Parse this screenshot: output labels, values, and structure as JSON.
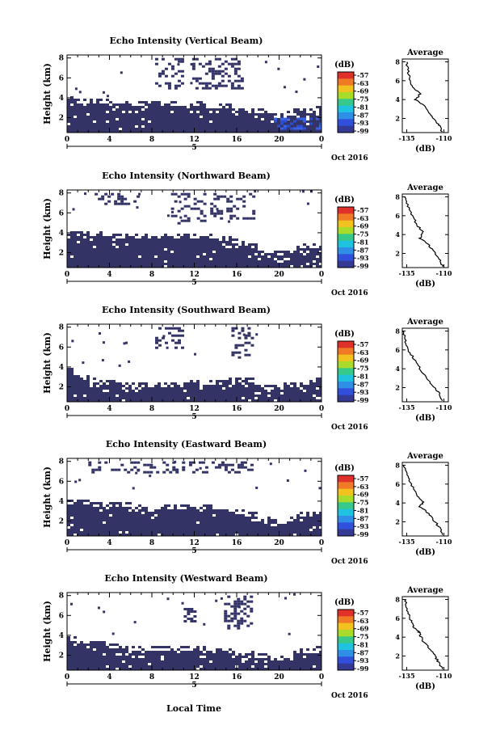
{
  "figure": {
    "xaxis_label": "Local Time",
    "colorbar_unit": "(dB)",
    "avg_title": "Average",
    "avg_xlabel": "(dB)",
    "ylabel": "Height (km)",
    "date_label": "Oct 2016",
    "day_label": "5",
    "colors": {
      "background": "#ffffff",
      "echo_fill": "#333366",
      "echo_strong": "#2d4fd6",
      "line": "#000000"
    }
  },
  "colorbar": {
    "ticks": [
      "-57",
      "-63",
      "-69",
      "-75",
      "-81",
      "-87",
      "-93",
      "-99"
    ],
    "colors": [
      "#e0302a",
      "#f07a25",
      "#f2c21e",
      "#a8db2a",
      "#37c98a",
      "#1fc3df",
      "#2f8ee6",
      "#3050dc",
      "#343a94"
    ]
  },
  "chart_data": [
    {
      "type": "heatmap",
      "title": "Echo Intensity (Vertical Beam)",
      "ylabel": "Height (km)",
      "yticks": [
        2,
        4,
        6,
        8
      ],
      "ylim": [
        0.5,
        8.3
      ],
      "xticks": [
        "0",
        "4",
        "8",
        "12",
        "16",
        "20",
        "0"
      ],
      "xlim": [
        0,
        24
      ],
      "echo_profile": [
        {
          "x": 0,
          "top": 3.6
        },
        {
          "x": 3,
          "top": 3.4
        },
        {
          "x": 6,
          "top": 3.1
        },
        {
          "x": 9,
          "top": 3.1
        },
        {
          "x": 12,
          "top": 3.2
        },
        {
          "x": 15,
          "top": 2.9
        },
        {
          "x": 18,
          "top": 2.5
        },
        {
          "x": 20,
          "top": 1.8
        },
        {
          "x": 22,
          "top": 2.6
        },
        {
          "x": 24,
          "top": 2.7
        }
      ],
      "sparse_regions": [
        {
          "x": [
            8.3,
            10.8
          ],
          "y": [
            5.0,
            8.0
          ]
        },
        {
          "x": [
            11.8,
            16.6
          ],
          "y": [
            5.0,
            8.0
          ]
        }
      ],
      "strong_region": {
        "x": [
          19.5,
          24
        ],
        "y": [
          0.8,
          2.0
        ]
      },
      "average": {
        "title": "Average",
        "xlabel": "(dB)",
        "xticks": [
          -135,
          -110
        ],
        "xlim": [
          -138,
          -107
        ],
        "yticks": [
          2,
          4,
          6,
          8
        ],
        "ylim": [
          0.5,
          8.3
        ],
        "profile": [
          {
            "h": 8.0,
            "db": -135
          },
          {
            "h": 7.0,
            "db": -134
          },
          {
            "h": 6.0,
            "db": -133
          },
          {
            "h": 5.2,
            "db": -130
          },
          {
            "h": 4.6,
            "db": -126
          },
          {
            "h": 4.0,
            "db": -129
          },
          {
            "h": 3.4,
            "db": -124
          },
          {
            "h": 2.6,
            "db": -120
          },
          {
            "h": 1.8,
            "db": -116
          },
          {
            "h": 1.2,
            "db": -113
          },
          {
            "h": 0.6,
            "db": -111
          }
        ]
      }
    },
    {
      "type": "heatmap",
      "title": "Echo Intensity (Northward Beam)",
      "ylabel": "Height (km)",
      "yticks": [
        2,
        4,
        6,
        8
      ],
      "ylim": [
        0.5,
        8.3
      ],
      "xticks": [
        "0",
        "4",
        "8",
        "12",
        "16",
        "20",
        "0"
      ],
      "xlim": [
        0,
        24
      ],
      "echo_profile": [
        {
          "x": 0,
          "top": 3.8
        },
        {
          "x": 3,
          "top": 3.6
        },
        {
          "x": 6,
          "top": 3.5
        },
        {
          "x": 9,
          "top": 3.4
        },
        {
          "x": 12,
          "top": 3.5
        },
        {
          "x": 15,
          "top": 3.2
        },
        {
          "x": 18,
          "top": 2.3
        },
        {
          "x": 20,
          "top": 1.6
        },
        {
          "x": 22,
          "top": 2.3
        },
        {
          "x": 24,
          "top": 2.7
        }
      ],
      "sparse_regions": [
        {
          "x": [
            2.6,
            7.0
          ],
          "y": [
            7.0,
            8.0
          ]
        },
        {
          "x": [
            9.8,
            13.0
          ],
          "y": [
            5.0,
            8.0
          ]
        },
        {
          "x": [
            13.5,
            17.5
          ],
          "y": [
            5.4,
            8.0
          ]
        }
      ],
      "strong_region": null,
      "average": {
        "title": "Average",
        "xlabel": "(dB)",
        "xticks": [
          -135,
          -110
        ],
        "xlim": [
          -138,
          -107
        ],
        "yticks": [
          2,
          4,
          6,
          8
        ],
        "ylim": [
          0.5,
          8.3
        ],
        "profile": [
          {
            "h": 8.0,
            "db": -136
          },
          {
            "h": 7.0,
            "db": -134
          },
          {
            "h": 6.0,
            "db": -131
          },
          {
            "h": 5.0,
            "db": -128
          },
          {
            "h": 4.2,
            "db": -124
          },
          {
            "h": 3.6,
            "db": -126
          },
          {
            "h": 3.0,
            "db": -121
          },
          {
            "h": 2.2,
            "db": -117
          },
          {
            "h": 1.4,
            "db": -113
          },
          {
            "h": 0.6,
            "db": -111
          }
        ]
      }
    },
    {
      "type": "heatmap",
      "title": "Echo Intensity (Southward Beam)",
      "ylabel": "Height (km)",
      "yticks": [
        2,
        4,
        6,
        8
      ],
      "ylim": [
        0.5,
        8.3
      ],
      "xticks": [
        "0",
        "4",
        "8",
        "12",
        "16",
        "20",
        "0"
      ],
      "xlim": [
        0,
        24
      ],
      "echo_profile": [
        {
          "x": 0,
          "top": 3.6
        },
        {
          "x": 2,
          "top": 2.6
        },
        {
          "x": 4,
          "top": 2.1
        },
        {
          "x": 8,
          "top": 2.0
        },
        {
          "x": 12,
          "top": 2.1
        },
        {
          "x": 15,
          "top": 2.3
        },
        {
          "x": 17,
          "top": 2.6
        },
        {
          "x": 19,
          "top": 1.6
        },
        {
          "x": 22,
          "top": 2.1
        },
        {
          "x": 24,
          "top": 2.4
        }
      ],
      "sparse_regions": [
        {
          "x": [
            8.0,
            11.0
          ],
          "y": [
            6.0,
            8.0
          ]
        },
        {
          "x": [
            15.5,
            17.5
          ],
          "y": [
            5.0,
            8.0
          ]
        }
      ],
      "strong_region": null,
      "average": {
        "title": "Average",
        "xlabel": "(dB)",
        "xticks": [
          -135,
          -110
        ],
        "xlim": [
          -138,
          -107
        ],
        "yticks": [
          2,
          4,
          6,
          8
        ],
        "ylim": [
          0.5,
          8.3
        ],
        "profile": [
          {
            "h": 8.0,
            "db": -137
          },
          {
            "h": 7.0,
            "db": -136
          },
          {
            "h": 6.0,
            "db": -134
          },
          {
            "h": 5.0,
            "db": -130
          },
          {
            "h": 4.0,
            "db": -126
          },
          {
            "h": 3.0,
            "db": -122
          },
          {
            "h": 2.2,
            "db": -117
          },
          {
            "h": 1.4,
            "db": -113
          },
          {
            "h": 0.6,
            "db": -111
          }
        ]
      }
    },
    {
      "type": "heatmap",
      "title": "Echo Intensity (Eastward Beam)",
      "ylabel": "Height (km)",
      "yticks": [
        2,
        4,
        6,
        8
      ],
      "ylim": [
        0.5,
        8.3
      ],
      "xticks": [
        "0",
        "4",
        "8",
        "12",
        "16",
        "20",
        "0"
      ],
      "xlim": [
        0,
        24
      ],
      "echo_profile": [
        {
          "x": 0,
          "top": 3.8
        },
        {
          "x": 3,
          "top": 3.5
        },
        {
          "x": 6,
          "top": 3.3
        },
        {
          "x": 9,
          "top": 3.2
        },
        {
          "x": 12,
          "top": 3.3
        },
        {
          "x": 15,
          "top": 3.0
        },
        {
          "x": 18,
          "top": 2.3
        },
        {
          "x": 20,
          "top": 1.6
        },
        {
          "x": 22,
          "top": 2.4
        },
        {
          "x": 24,
          "top": 2.7
        }
      ],
      "sparse_regions": [
        {
          "x": [
            2.0,
            11.0
          ],
          "y": [
            6.8,
            8.0
          ]
        },
        {
          "x": [
            11.5,
            17.5
          ],
          "y": [
            6.8,
            8.0
          ]
        }
      ],
      "strong_region": null,
      "average": {
        "title": "Average",
        "xlabel": "(dB)",
        "xticks": [
          -135,
          -110
        ],
        "xlim": [
          -138,
          -107
        ],
        "yticks": [
          2,
          4,
          6,
          8
        ],
        "ylim": [
          0.5,
          8.3
        ],
        "profile": [
          {
            "h": 8.0,
            "db": -137
          },
          {
            "h": 7.0,
            "db": -135
          },
          {
            "h": 6.0,
            "db": -132
          },
          {
            "h": 5.0,
            "db": -129
          },
          {
            "h": 4.2,
            "db": -124
          },
          {
            "h": 3.6,
            "db": -126
          },
          {
            "h": 3.0,
            "db": -121
          },
          {
            "h": 2.2,
            "db": -117
          },
          {
            "h": 1.4,
            "db": -113
          },
          {
            "h": 0.6,
            "db": -111
          }
        ]
      }
    },
    {
      "type": "heatmap",
      "title": "Echo Intensity (Westward Beam)",
      "ylabel": "Height (km)",
      "yticks": [
        2,
        4,
        6,
        8
      ],
      "ylim": [
        0.5,
        8.3
      ],
      "xticks": [
        "0",
        "4",
        "8",
        "12",
        "16",
        "20",
        "0"
      ],
      "xlim": [
        0,
        24
      ],
      "echo_profile": [
        {
          "x": 0,
          "top": 3.6
        },
        {
          "x": 3,
          "top": 3.0
        },
        {
          "x": 6,
          "top": 2.4
        },
        {
          "x": 9,
          "top": 2.5
        },
        {
          "x": 12,
          "top": 2.4
        },
        {
          "x": 15,
          "top": 2.2
        },
        {
          "x": 18,
          "top": 1.8
        },
        {
          "x": 20,
          "top": 1.4
        },
        {
          "x": 22,
          "top": 2.3
        },
        {
          "x": 24,
          "top": 2.4
        }
      ],
      "sparse_regions": [
        {
          "x": [
            14.8,
            17.5
          ],
          "y": [
            4.8,
            8.0
          ]
        },
        {
          "x": [
            11.0,
            12.0
          ],
          "y": [
            5.0,
            7.0
          ]
        }
      ],
      "strong_region": null,
      "average": {
        "title": "Average",
        "xlabel": "(dB)",
        "xticks": [
          -135,
          -110
        ],
        "xlim": [
          -138,
          -107
        ],
        "yticks": [
          2,
          4,
          6,
          8
        ],
        "ylim": [
          0.5,
          8.3
        ],
        "profile": [
          {
            "h": 8.0,
            "db": -136
          },
          {
            "h": 7.0,
            "db": -135
          },
          {
            "h": 6.0,
            "db": -133
          },
          {
            "h": 5.2,
            "db": -131
          },
          {
            "h": 4.6,
            "db": -127
          },
          {
            "h": 4.2,
            "db": -126
          },
          {
            "h": 3.6,
            "db": -124
          },
          {
            "h": 2.8,
            "db": -120
          },
          {
            "h": 2.0,
            "db": -116
          },
          {
            "h": 1.2,
            "db": -113
          },
          {
            "h": 0.6,
            "db": -111
          }
        ]
      }
    }
  ]
}
